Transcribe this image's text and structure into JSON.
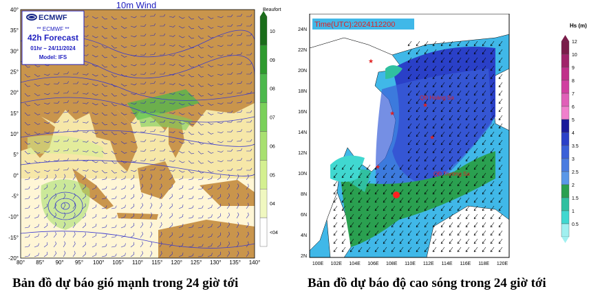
{
  "left_map": {
    "title": "10m Wind",
    "logo_text": "ECMWF",
    "info_box": {
      "line1": "** ECMWF **",
      "line2": "42h Forecast",
      "line3": "01hr – 24/11/2024",
      "line4": "Model: IFS"
    },
    "lat_labels": [
      "40°",
      "35°",
      "30°",
      "25°",
      "20°",
      "15°",
      "10°",
      "5°",
      "0°",
      "-5°",
      "-10°",
      "-15°",
      "-20°"
    ],
    "lon_labels": [
      "80°",
      "85°",
      "90°",
      "95°",
      "100°",
      "105°",
      "110°",
      "115°",
      "120°",
      "125°",
      "130°",
      "135°",
      "140°"
    ],
    "legend_title": "Beaufort",
    "legend_levels": [
      "10",
      "09",
      "08",
      "07",
      "06",
      "05",
      "04",
      "<04"
    ],
    "legend_colors": [
      "#1a6d1a",
      "#2e9a2e",
      "#4cb84c",
      "#7ad05a",
      "#a8e070",
      "#d4f090",
      "#f0f8c0",
      "#ffffff"
    ],
    "land_color": "#c9954c",
    "sea_color_a": "#f6e7a8",
    "sea_color_b": "#fff6d6",
    "isobar_color": "#3a3ad0"
  },
  "right_map": {
    "time_label": "Time(UTC):2024112200",
    "place_labels": [
      "QĐ Hoàng Sa",
      "QĐ Trường Sa"
    ],
    "lat_labels": [
      "24N",
      "22N",
      "20N",
      "18N",
      "16N",
      "14N",
      "12N",
      "10N",
      "8N",
      "6N",
      "4N",
      "2N"
    ],
    "lon_labels": [
      "100E",
      "102E",
      "104E",
      "106E",
      "108E",
      "110E",
      "112E",
      "114E",
      "116E",
      "118E",
      "120E"
    ],
    "legend_title": "Hs (m)",
    "legend_levels": [
      "12",
      "10",
      "9",
      "8",
      "7",
      "6",
      "5",
      "4",
      "3.5",
      "3",
      "2.5",
      "2",
      "1.5",
      "1",
      "0.5"
    ],
    "legend_colors": [
      "#7a1d4a",
      "#a0246a",
      "#c0308a",
      "#d040a0",
      "#e060b8",
      "#f080cc",
      "#1a1a9a",
      "#2a40c8",
      "#3a60d8",
      "#4a7ce0",
      "#5a98e8",
      "#2aa050",
      "#30c0a0",
      "#40d8d0",
      "#a0f0f0"
    ],
    "bg_color": "#40b8e8",
    "land_color": "#ffffff"
  },
  "captions": {
    "left": "Bản đồ dự báo gió mạnh trong 24 giờ tới",
    "right": "Bản đồ dự báo độ cao sóng trong 24 giờ tới"
  }
}
